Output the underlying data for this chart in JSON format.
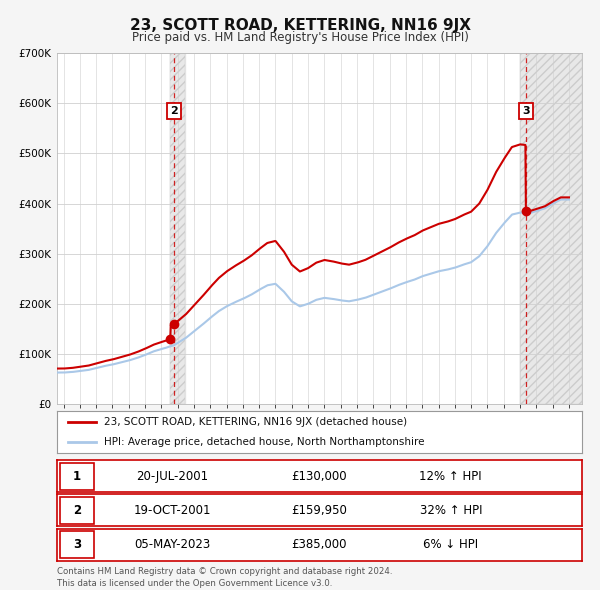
{
  "title": "23, SCOTT ROAD, KETTERING, NN16 9JX",
  "subtitle": "Price paid vs. HM Land Registry's House Price Index (HPI)",
  "ylim": [
    0,
    700000
  ],
  "xlim_start": 1994.6,
  "xlim_end": 2026.8,
  "hpi_color": "#aac8e8",
  "price_color": "#cc0000",
  "sale1_date": 2001.547,
  "sale1_price": 130000,
  "sale1_label": "1",
  "sale2_date": 2001.797,
  "sale2_price": 159950,
  "sale2_label": "2",
  "sale3_date": 2023.344,
  "sale3_price": 385000,
  "sale3_label": "3",
  "legend_line1": "23, SCOTT ROAD, KETTERING, NN16 9JX (detached house)",
  "legend_line2": "HPI: Average price, detached house, North Northamptonshire",
  "table_rows": [
    {
      "num": "1",
      "date": "20-JUL-2001",
      "price": "£130,000",
      "change": "12% ↑ HPI"
    },
    {
      "num": "2",
      "date": "19-OCT-2001",
      "price": "£159,950",
      "change": "32% ↑ HPI"
    },
    {
      "num": "3",
      "date": "05-MAY-2023",
      "price": "£385,000",
      "change": "6% ↓ HPI"
    }
  ],
  "footer": "Contains HM Land Registry data © Crown copyright and database right 2024.\nThis data is licensed under the Open Government Licence v3.0.",
  "background_color": "#f5f5f5",
  "plot_bg_color": "#ffffff",
  "shaded_region_color": "#e8e8e8",
  "grid_color": "#d0d0d0",
  "ytick_values": [
    0,
    100000,
    200000,
    300000,
    400000,
    500000,
    600000,
    700000
  ],
  "years_hpi": [
    1995.0,
    1995.5,
    1996.0,
    1996.5,
    1997.0,
    1997.5,
    1998.0,
    1998.5,
    1999.0,
    1999.5,
    2000.0,
    2000.5,
    2001.0,
    2001.25,
    2001.5,
    2001.75,
    2002.0,
    2002.5,
    2003.0,
    2003.5,
    2004.0,
    2004.5,
    2005.0,
    2005.5,
    2006.0,
    2006.5,
    2007.0,
    2007.5,
    2008.0,
    2008.5,
    2009.0,
    2009.5,
    2010.0,
    2010.5,
    2011.0,
    2011.5,
    2012.0,
    2012.5,
    2013.0,
    2013.5,
    2014.0,
    2014.5,
    2015.0,
    2015.5,
    2016.0,
    2016.5,
    2017.0,
    2017.5,
    2018.0,
    2018.5,
    2019.0,
    2019.5,
    2020.0,
    2020.5,
    2021.0,
    2021.5,
    2022.0,
    2022.5,
    2023.0,
    2023.344,
    2023.5,
    2024.0,
    2024.5,
    2025.0,
    2025.5
  ],
  "hpi_vals": [
    63000,
    64000,
    66000,
    68000,
    72000,
    76000,
    79000,
    83000,
    87000,
    92000,
    98000,
    105000,
    110000,
    112000,
    115000,
    117000,
    122000,
    132000,
    145000,
    158000,
    172000,
    185000,
    195000,
    203000,
    210000,
    218000,
    228000,
    237000,
    240000,
    225000,
    205000,
    195000,
    200000,
    208000,
    212000,
    210000,
    207000,
    205000,
    208000,
    212000,
    218000,
    224000,
    230000,
    237000,
    243000,
    248000,
    255000,
    260000,
    265000,
    268000,
    272000,
    278000,
    283000,
    295000,
    315000,
    340000,
    360000,
    378000,
    382000,
    381000,
    380000,
    385000,
    390000,
    400000,
    408000
  ]
}
